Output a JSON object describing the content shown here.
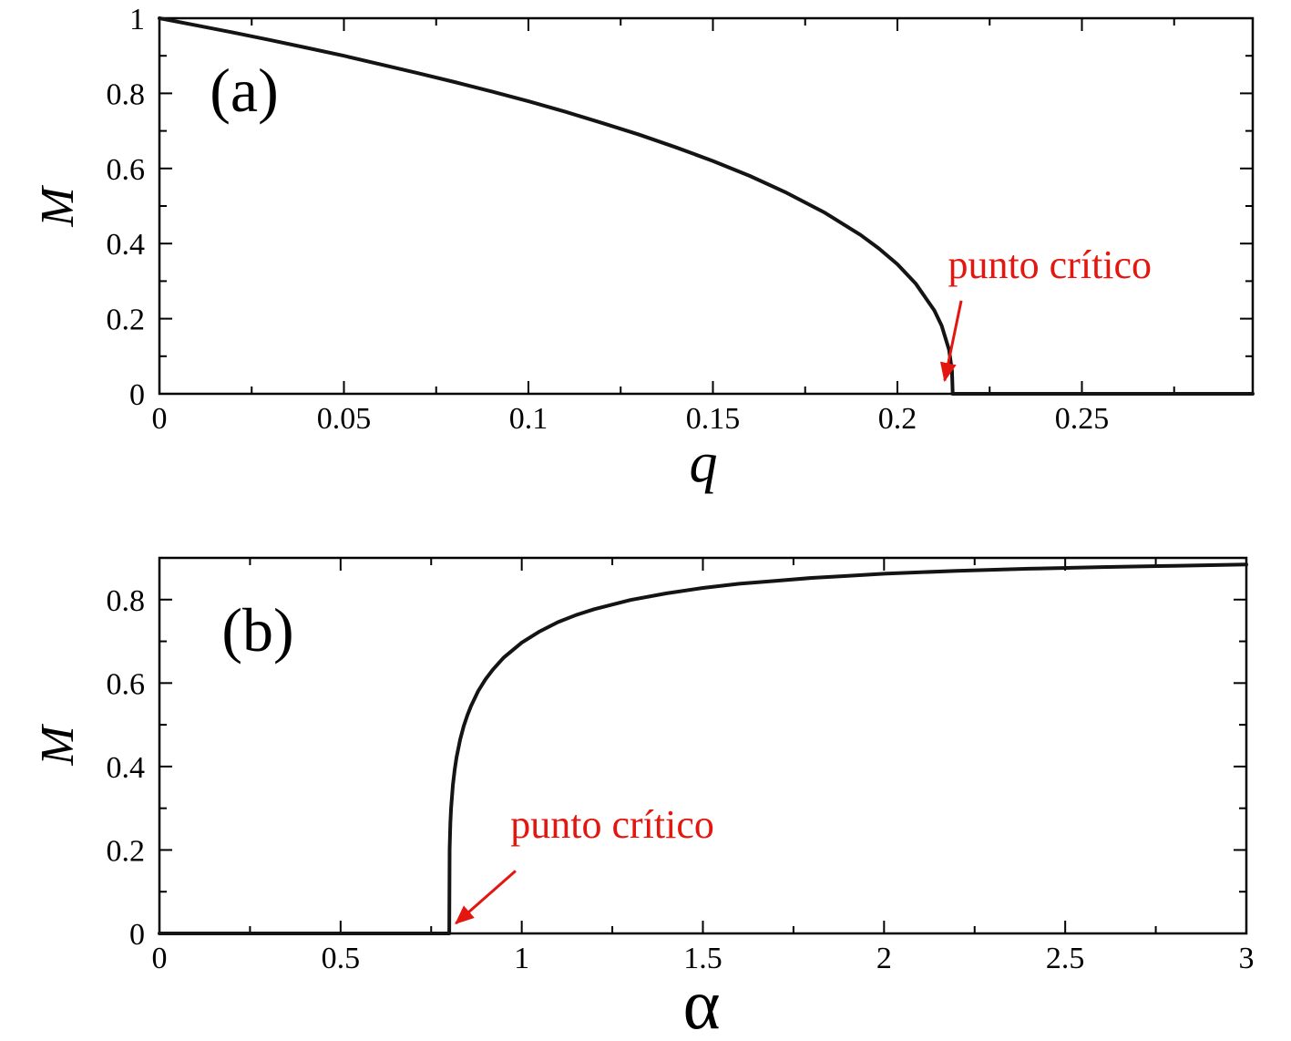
{
  "colors": {
    "background": "#ffffff",
    "curve": "#141414",
    "axis": "#000000",
    "annotation": "#e3170f"
  },
  "chart_data": [
    {
      "id": "panel-a",
      "type": "line",
      "panel_label": "(a)",
      "xlabel": "q",
      "xlabel_italic": true,
      "ylabel": "M",
      "ylabel_italic": true,
      "xlim": [
        0,
        0.2963
      ],
      "ylim": [
        0,
        1
      ],
      "grid": false,
      "legend": "none",
      "xticks": {
        "major": [
          0,
          0.05,
          0.1,
          0.15,
          0.2,
          0.25
        ],
        "labels": [
          "0",
          "0.05",
          "0.1",
          "0.15",
          "0.2",
          "0.25"
        ],
        "minor": [
          0.025,
          0.075,
          0.125,
          0.175,
          0.225,
          0.275
        ]
      },
      "yticks": {
        "major": [
          0,
          0.2,
          0.4,
          0.6,
          0.8,
          1
        ],
        "labels": [
          "0",
          "0.2",
          "0.4",
          "0.6",
          "0.8",
          "1"
        ],
        "minor": [
          0.1,
          0.3,
          0.5,
          0.7,
          0.9
        ]
      },
      "critical_point": {
        "x": 0.215,
        "y": 0
      },
      "annotation": {
        "text": "punto crítico",
        "text_x": 0.2413,
        "text_y": 0.345,
        "arrow_from": [
          0.2173,
          0.248
        ],
        "arrow_to": [
          0.2128,
          0.035
        ]
      },
      "series": [
        {
          "name": "M(q)",
          "points": [
            [
              0,
              1
            ],
            [
              0.01,
              0.981
            ],
            [
              0.02,
              0.962
            ],
            [
              0.03,
              0.942
            ],
            [
              0.04,
              0.921
            ],
            [
              0.05,
              0.9
            ],
            [
              0.06,
              0.877
            ],
            [
              0.07,
              0.854
            ],
            [
              0.08,
              0.83
            ],
            [
              0.09,
              0.805
            ],
            [
              0.1,
              0.779
            ],
            [
              0.11,
              0.751
            ],
            [
              0.12,
              0.721
            ],
            [
              0.13,
              0.69
            ],
            [
              0.14,
              0.656
            ],
            [
              0.15,
              0.62
            ],
            [
              0.16,
              0.58
            ],
            [
              0.17,
              0.535
            ],
            [
              0.18,
              0.484
            ],
            [
              0.19,
              0.423
            ],
            [
              0.195,
              0.387
            ],
            [
              0.2,
              0.345
            ],
            [
              0.205,
              0.293
            ],
            [
              0.21,
              0.222
            ],
            [
              0.212,
              0.181
            ],
            [
              0.214,
              0.117
            ],
            [
              0.2148,
              0.061
            ],
            [
              0.215,
              0
            ],
            [
              0.23,
              0
            ],
            [
              0.26,
              0
            ],
            [
              0.2963,
              0
            ]
          ]
        }
      ]
    },
    {
      "id": "panel-b",
      "type": "line",
      "panel_label": "(b)",
      "xlabel": "α",
      "xlabel_italic": false,
      "ylabel": "M",
      "ylabel_italic": true,
      "xlim": [
        0,
        3
      ],
      "ylim": [
        0,
        0.9
      ],
      "grid": false,
      "legend": "none",
      "xticks": {
        "major": [
          0,
          0.5,
          1,
          1.5,
          2,
          2.5,
          3
        ],
        "labels": [
          "0",
          "0.5",
          "1",
          "1.5",
          "2",
          "2.5",
          "3"
        ],
        "minor": [
          0.25,
          0.75,
          1.25,
          1.75,
          2.25,
          2.75
        ]
      },
      "yticks": {
        "major": [
          0,
          0.2,
          0.4,
          0.6,
          0.8
        ],
        "labels": [
          "0",
          "0.2",
          "0.4",
          "0.6",
          "0.8"
        ],
        "minor": [
          0.1,
          0.3,
          0.5,
          0.7
        ]
      },
      "critical_point": {
        "x": 0.8,
        "y": 0
      },
      "annotation": {
        "text": "punto crítico",
        "text_x": 1.25,
        "text_y": 0.262,
        "arrow_from": [
          0.983,
          0.15
        ],
        "arrow_to": [
          0.818,
          0.024
        ]
      },
      "series": [
        {
          "name": "M(α)",
          "points": [
            [
              0,
              0
            ],
            [
              0.3,
              0
            ],
            [
              0.6,
              0
            ],
            [
              0.795,
              0
            ],
            [
              0.8,
              0
            ],
            [
              0.801,
              0.201
            ],
            [
              0.803,
              0.264
            ],
            [
              0.805,
              0.3
            ],
            [
              0.81,
              0.356
            ],
            [
              0.815,
              0.393
            ],
            [
              0.82,
              0.422
            ],
            [
              0.83,
              0.465
            ],
            [
              0.84,
              0.497
            ],
            [
              0.85,
              0.523
            ],
            [
              0.86,
              0.545
            ],
            [
              0.88,
              0.581
            ],
            [
              0.9,
              0.609
            ],
            [
              0.92,
              0.632
            ],
            [
              0.95,
              0.661
            ],
            [
              1,
              0.697
            ],
            [
              1.05,
              0.724
            ],
            [
              1.1,
              0.746
            ],
            [
              1.15,
              0.763
            ],
            [
              1.2,
              0.777
            ],
            [
              1.3,
              0.799
            ],
            [
              1.4,
              0.815
            ],
            [
              1.5,
              0.828
            ],
            [
              1.6,
              0.838
            ],
            [
              1.7,
              0.845
            ],
            [
              1.8,
              0.852
            ],
            [
              1.9,
              0.857
            ],
            [
              2,
              0.862
            ],
            [
              2.2,
              0.869
            ],
            [
              2.4,
              0.874
            ],
            [
              2.6,
              0.878
            ],
            [
              2.8,
              0.881
            ],
            [
              3,
              0.884
            ]
          ]
        }
      ]
    }
  ]
}
